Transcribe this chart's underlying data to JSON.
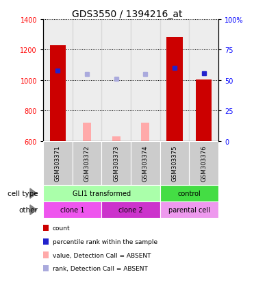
{
  "title": "GDS3550 / 1394216_at",
  "samples": [
    "GSM303371",
    "GSM303372",
    "GSM303373",
    "GSM303374",
    "GSM303375",
    "GSM303376"
  ],
  "ylim": [
    600,
    1400
  ],
  "ylim_right": [
    0,
    100
  ],
  "yticks_left": [
    600,
    800,
    1000,
    1200,
    1400
  ],
  "yticks_right": [
    0,
    25,
    50,
    75,
    100
  ],
  "bar_counts": [
    1230,
    null,
    null,
    null,
    1285,
    1005
  ],
  "bar_count_color": "#cc0000",
  "bar_absent_value": [
    null,
    720,
    630,
    720,
    null,
    null
  ],
  "bar_absent_color": "#ffaaaa",
  "dot_percentile": [
    1065,
    null,
    null,
    null,
    1080,
    1045
  ],
  "dot_percentile_color": "#2222cc",
  "dot_absent_rank": [
    null,
    1040,
    1010,
    1040,
    null,
    null
  ],
  "dot_absent_color": "#aaaadd",
  "bar_bottom": 600,
  "bar_width": 0.55,
  "absent_bar_width": 0.28,
  "cell_type_groups": [
    {
      "label": "GLI1 transformed",
      "cols": [
        0,
        1,
        2,
        3
      ],
      "color": "#aaffaa"
    },
    {
      "label": "control",
      "cols": [
        4,
        5
      ],
      "color": "#44dd44"
    }
  ],
  "other_groups": [
    {
      "label": "clone 1",
      "cols": [
        0,
        1
      ],
      "color": "#ee55ee"
    },
    {
      "label": "clone 2",
      "cols": [
        2,
        3
      ],
      "color": "#cc33cc"
    },
    {
      "label": "parental cell",
      "cols": [
        4,
        5
      ],
      "color": "#ee99ee"
    }
  ],
  "cell_type_label": "cell type",
  "other_label": "other",
  "legend_items": [
    {
      "color": "#cc0000",
      "label": "count"
    },
    {
      "color": "#2222cc",
      "label": "percentile rank within the sample"
    },
    {
      "color": "#ffaaaa",
      "label": "value, Detection Call = ABSENT"
    },
    {
      "color": "#aaaadd",
      "label": "rank, Detection Call = ABSENT"
    }
  ],
  "sample_col_color": "#cccccc",
  "plot_bg_color": "#ffffff",
  "title_fontsize": 10,
  "tick_fontsize": 7,
  "label_fontsize": 7.5
}
